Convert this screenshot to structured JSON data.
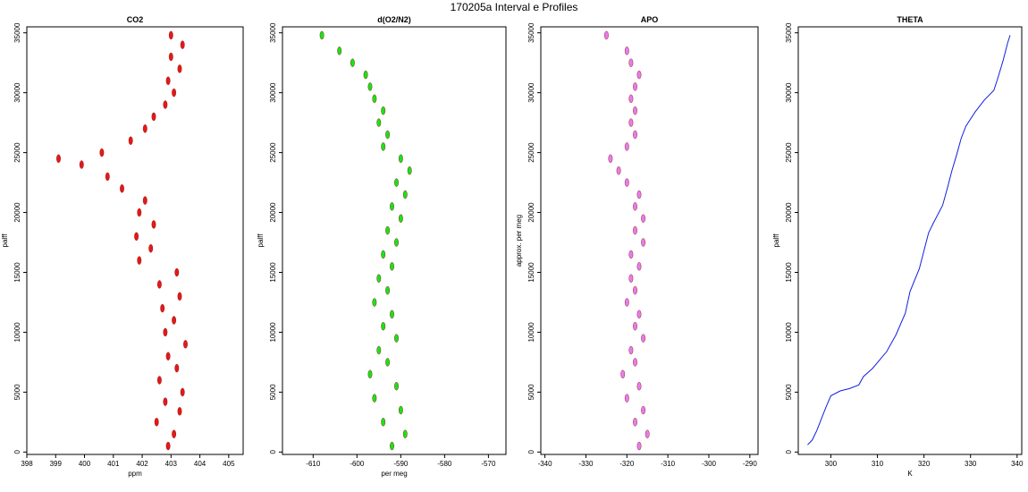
{
  "figure": {
    "title": "170205a   Interval e Profiles"
  },
  "chart_data": [
    {
      "type": "scatter",
      "title": "CO2",
      "xlabel": "ppm",
      "ylabel": "palff",
      "xlim": [
        398,
        405.5
      ],
      "ylim": [
        -200,
        35500
      ],
      "xticks": [
        398,
        399,
        400,
        401,
        402,
        403,
        404,
        405
      ],
      "yticks": [
        0,
        5000,
        10000,
        15000,
        20000,
        25000,
        30000,
        35000
      ],
      "color": "#e00000",
      "series": [
        {
          "points": [
            [
              402.9,
              500
            ],
            [
              403.1,
              1500
            ],
            [
              402.5,
              2500
            ],
            [
              403.3,
              3400
            ],
            [
              402.8,
              4200
            ],
            [
              403.4,
              5000
            ],
            [
              402.6,
              6000
            ],
            [
              403.2,
              7000
            ],
            [
              402.9,
              8000
            ],
            [
              403.5,
              9000
            ],
            [
              402.8,
              10000
            ],
            [
              403.1,
              11000
            ],
            [
              402.7,
              12000
            ],
            [
              403.3,
              13000
            ],
            [
              402.6,
              14000
            ],
            [
              403.2,
              15000
            ],
            [
              401.9,
              16000
            ],
            [
              402.3,
              17000
            ],
            [
              401.8,
              18000
            ],
            [
              402.4,
              19000
            ],
            [
              401.9,
              20000
            ],
            [
              402.1,
              21000
            ],
            [
              401.3,
              22000
            ],
            [
              400.8,
              23000
            ],
            [
              399.9,
              24000
            ],
            [
              399.1,
              24500
            ],
            [
              400.6,
              25000
            ],
            [
              401.6,
              26000
            ],
            [
              402.1,
              27000
            ],
            [
              402.4,
              28000
            ],
            [
              402.8,
              29000
            ],
            [
              403.1,
              30000
            ],
            [
              402.9,
              31000
            ],
            [
              403.3,
              32000
            ],
            [
              403.0,
              33000
            ],
            [
              403.4,
              34000
            ],
            [
              403.0,
              34800
            ]
          ]
        }
      ]
    },
    {
      "type": "scatter",
      "title": "d(O2/N2)",
      "xlabel": "per meg",
      "ylabel": "palff",
      "xlim": [
        -617,
        -566
      ],
      "ylim": [
        -200,
        35500
      ],
      "xticks": [
        -610,
        -600,
        -590,
        -580,
        -570
      ],
      "yticks": [
        0,
        5000,
        10000,
        15000,
        20000,
        25000,
        30000,
        35000
      ],
      "color": "#00e000",
      "series": [
        {
          "points": [
            [
              -592,
              500
            ],
            [
              -589,
              1500
            ],
            [
              -594,
              2500
            ],
            [
              -590,
              3500
            ],
            [
              -596,
              4500
            ],
            [
              -591,
              5500
            ],
            [
              -597,
              6500
            ],
            [
              -593,
              7500
            ],
            [
              -595,
              8500
            ],
            [
              -591,
              9500
            ],
            [
              -594,
              10500
            ],
            [
              -592,
              11500
            ],
            [
              -596,
              12500
            ],
            [
              -593,
              13500
            ],
            [
              -595,
              14500
            ],
            [
              -592,
              15500
            ],
            [
              -594,
              16500
            ],
            [
              -591,
              17500
            ],
            [
              -593,
              18500
            ],
            [
              -590,
              19500
            ],
            [
              -592,
              20500
            ],
            [
              -589,
              21500
            ],
            [
              -591,
              22500
            ],
            [
              -588,
              23500
            ],
            [
              -590,
              24500
            ],
            [
              -594,
              25500
            ],
            [
              -593,
              26500
            ],
            [
              -595,
              27500
            ],
            [
              -594,
              28500
            ],
            [
              -596,
              29500
            ],
            [
              -597,
              30500
            ],
            [
              -598,
              31500
            ],
            [
              -601,
              32500
            ],
            [
              -604,
              33500
            ],
            [
              -608,
              34800
            ]
          ]
        }
      ]
    },
    {
      "type": "scatter",
      "title": "APO",
      "xlabel": "",
      "ylabel": "approx. per meg",
      "xlim": [
        -341,
        -288
      ],
      "ylim": [
        -200,
        35500
      ],
      "xticks": [
        -340,
        -330,
        -320,
        -310,
        -300,
        -290
      ],
      "yticks": [
        0,
        5000,
        10000,
        15000,
        20000,
        25000,
        30000,
        35000
      ],
      "color": "#e070e8",
      "series": [
        {
          "points": [
            [
              -317,
              500
            ],
            [
              -315,
              1500
            ],
            [
              -318,
              2500
            ],
            [
              -316,
              3500
            ],
            [
              -320,
              4500
            ],
            [
              -317,
              5500
            ],
            [
              -321,
              6500
            ],
            [
              -318,
              7500
            ],
            [
              -319,
              8500
            ],
            [
              -316,
              9500
            ],
            [
              -318,
              10500
            ],
            [
              -317,
              11500
            ],
            [
              -320,
              12500
            ],
            [
              -318,
              13500
            ],
            [
              -319,
              14500
            ],
            [
              -317,
              15500
            ],
            [
              -319,
              16500
            ],
            [
              -316,
              17500
            ],
            [
              -318,
              18500
            ],
            [
              -316,
              19500
            ],
            [
              -318,
              20500
            ],
            [
              -317,
              21500
            ],
            [
              -320,
              22500
            ],
            [
              -322,
              23500
            ],
            [
              -324,
              24500
            ],
            [
              -320,
              25500
            ],
            [
              -318,
              26500
            ],
            [
              -319,
              27500
            ],
            [
              -318,
              28500
            ],
            [
              -319,
              29500
            ],
            [
              -318,
              30500
            ],
            [
              -317,
              31500
            ],
            [
              -319,
              32500
            ],
            [
              -320,
              33500
            ],
            [
              -325,
              34800
            ]
          ]
        }
      ]
    },
    {
      "type": "line",
      "title": "THETA",
      "xlabel": "K",
      "ylabel": "palff",
      "xlim": [
        293,
        341
      ],
      "ylim": [
        -200,
        35500
      ],
      "xticks": [
        300,
        310,
        320,
        330,
        340
      ],
      "yticks": [
        0,
        5000,
        10000,
        15000,
        20000,
        25000,
        30000,
        35000
      ],
      "color": "#1020e0",
      "series": [
        {
          "points": [
            [
              295,
              600
            ],
            [
              296,
              1000
            ],
            [
              297,
              1800
            ],
            [
              298,
              2800
            ],
            [
              299,
              3800
            ],
            [
              300,
              4700
            ],
            [
              302,
              5100
            ],
            [
              304,
              5300
            ],
            [
              306,
              5600
            ],
            [
              307,
              6300
            ],
            [
              309,
              7000
            ],
            [
              312,
              8400
            ],
            [
              314,
              9800
            ],
            [
              316,
              11600
            ],
            [
              317,
              13400
            ],
            [
              319,
              15300
            ],
            [
              320,
              16800
            ],
            [
              321,
              18300
            ],
            [
              322,
              19100
            ],
            [
              324,
              20600
            ],
            [
              325,
              22000
            ],
            [
              326,
              23500
            ],
            [
              327,
              24800
            ],
            [
              328,
              26200
            ],
            [
              329,
              27200
            ],
            [
              331,
              28400
            ],
            [
              333,
              29400
            ],
            [
              335,
              30200
            ],
            [
              336,
              31400
            ],
            [
              337,
              32700
            ],
            [
              338,
              34200
            ],
            [
              338.5,
              34800
            ]
          ]
        }
      ]
    }
  ]
}
